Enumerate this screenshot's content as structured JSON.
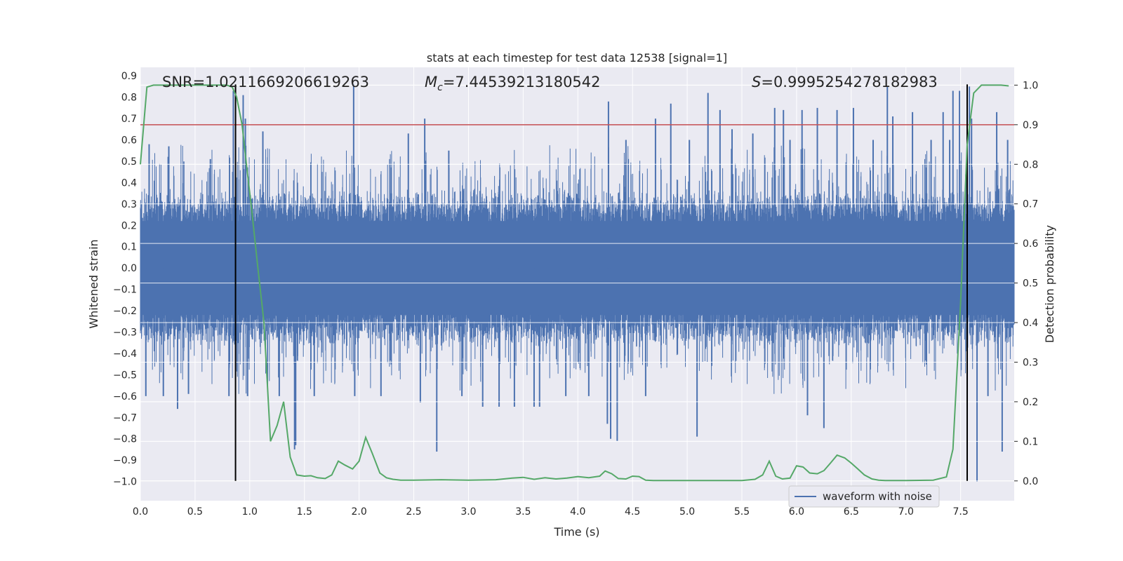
{
  "chart_data": {
    "type": "line",
    "title": "stats at each timestep for test data 12538 [signal=1]",
    "xlabel": "Time (s)",
    "ylabel": "Whitened strain",
    "ylabel_right": "Detection probability",
    "xlim": [
      0.0,
      7.99
    ],
    "ylim": [
      -1.09,
      0.94
    ],
    "ylim_right": [
      -0.05,
      1.045
    ],
    "x_ticks": [
      "0.0",
      "0.5",
      "1.0",
      "1.5",
      "2.0",
      "2.5",
      "3.0",
      "3.5",
      "4.0",
      "4.5",
      "5.0",
      "5.5",
      "6.0",
      "6.5",
      "7.0",
      "7.5"
    ],
    "y_ticks": [
      "0.9",
      "0.8",
      "0.7",
      "0.6",
      "0.5",
      "0.4",
      "0.3",
      "0.2",
      "0.1",
      "0.0",
      "−0.1",
      "−0.2",
      "−0.3",
      "−0.4",
      "−0.5",
      "−0.6",
      "−0.7",
      "−0.8",
      "−0.9",
      "−1.0"
    ],
    "y_ticks_right": [
      "0.0",
      "0.1",
      "0.2",
      "0.3",
      "0.4",
      "0.5",
      "0.6",
      "0.7",
      "0.8",
      "0.9",
      "1.0"
    ],
    "annotations": {
      "snr": "SNR=1.0211669206619263",
      "mc_symbol": "M",
      "mc_sub": "c",
      "mc_value": "=7.44539213180542",
      "s_symbol": "S",
      "s_value": "=0.9995254278182983"
    },
    "threshold": {
      "value": 0.9,
      "axis": "right",
      "color": "#c44e52"
    },
    "vlines": [
      0.87,
      7.56
    ],
    "legend": {
      "label": "waveform with noise",
      "placement": "lower-right"
    },
    "grid": true,
    "series": [
      {
        "name": "waveform with noise",
        "axis": "left",
        "color": "#4c72b0",
        "envelope_typical": 0.3,
        "x": [
          0.05,
          0.08,
          0.21,
          0.26,
          0.34,
          0.44,
          0.64,
          0.81,
          0.85,
          0.94,
          0.96,
          0.98,
          1.12,
          1.27,
          1.41,
          1.42,
          1.59,
          1.95,
          1.96,
          2.2,
          2.45,
          2.56,
          2.6,
          2.71,
          2.82,
          2.94,
          3.13,
          3.28,
          3.42,
          3.6,
          3.65,
          3.89,
          4.1,
          4.27,
          4.28,
          4.3,
          4.36,
          4.44,
          4.62,
          4.71,
          4.85,
          5.02,
          5.09,
          5.19,
          5.3,
          5.41,
          5.6,
          5.8,
          5.88,
          5.94,
          6.05,
          6.1,
          6.19,
          6.25,
          6.37,
          6.52,
          6.7,
          6.83,
          6.88,
          7.06,
          7.23,
          7.34,
          7.4,
          7.43,
          7.49,
          7.58,
          7.6,
          7.65,
          7.75,
          7.83,
          7.88,
          7.93
        ],
        "extremes": [
          -0.6,
          0.58,
          -0.6,
          0.57,
          -0.66,
          -0.59,
          0.51,
          -0.6,
          0.83,
          0.81,
          0.7,
          -0.6,
          0.64,
          -0.6,
          -0.85,
          -0.83,
          -0.6,
          0.86,
          -0.6,
          -0.6,
          0.63,
          -0.63,
          0.7,
          -0.86,
          0.55,
          -0.6,
          -0.65,
          -0.65,
          -0.65,
          -0.65,
          -0.65,
          -0.6,
          -0.6,
          -0.73,
          0.78,
          -0.8,
          -0.81,
          0.6,
          -0.6,
          0.7,
          0.77,
          0.6,
          -0.79,
          0.82,
          0.74,
          0.65,
          0.63,
          0.75,
          0.74,
          0.6,
          0.74,
          -0.69,
          0.75,
          -0.75,
          0.74,
          0.75,
          0.6,
          0.85,
          0.71,
          0.73,
          0.6,
          0.73,
          0.6,
          0.83,
          0.83,
          0.85,
          0.7,
          -1.0,
          -0.6,
          0.73,
          -0.86,
          0.6
        ]
      },
      {
        "name": "detection probability",
        "axis": "right",
        "color": "#55a868",
        "x": [
          0.0,
          0.06,
          0.12,
          0.25,
          0.5,
          0.6,
          0.7,
          0.79,
          0.84,
          0.88,
          0.93,
          0.97,
          1.02,
          1.07,
          1.13,
          1.19,
          1.25,
          1.31,
          1.37,
          1.43,
          1.5,
          1.56,
          1.62,
          1.69,
          1.75,
          1.81,
          1.87,
          1.94,
          2.0,
          2.06,
          2.12,
          2.19,
          2.25,
          2.31,
          2.38,
          2.5,
          2.75,
          3.0,
          3.25,
          3.4,
          3.5,
          3.6,
          3.7,
          3.8,
          3.9,
          4.0,
          4.1,
          4.2,
          4.25,
          4.31,
          4.37,
          4.44,
          4.5,
          4.56,
          4.62,
          4.69,
          4.75,
          4.87,
          5.0,
          5.25,
          5.5,
          5.62,
          5.69,
          5.75,
          5.81,
          5.87,
          5.94,
          6.0,
          6.06,
          6.12,
          6.19,
          6.25,
          6.31,
          6.37,
          6.44,
          6.5,
          6.56,
          6.62,
          6.69,
          6.75,
          6.81,
          6.87,
          7.0,
          7.25,
          7.37,
          7.43,
          7.5,
          7.56,
          7.62,
          7.69,
          7.75,
          7.81,
          7.87,
          7.94
        ],
        "y": [
          0.8,
          0.995,
          1.0,
          1.0,
          1.0,
          1.0,
          1.0,
          1.0,
          0.995,
          0.97,
          0.9,
          0.8,
          0.68,
          0.55,
          0.4,
          0.1,
          0.14,
          0.2,
          0.06,
          0.015,
          0.012,
          0.013,
          0.008,
          0.006,
          0.015,
          0.05,
          0.04,
          0.03,
          0.05,
          0.11,
          0.07,
          0.02,
          0.008,
          0.004,
          0.002,
          0.002,
          0.003,
          0.002,
          0.003,
          0.007,
          0.009,
          0.004,
          0.008,
          0.005,
          0.007,
          0.011,
          0.008,
          0.012,
          0.025,
          0.018,
          0.006,
          0.005,
          0.012,
          0.011,
          0.002,
          0.001,
          0.001,
          0.001,
          0.001,
          0.001,
          0.001,
          0.004,
          0.015,
          0.05,
          0.012,
          0.005,
          0.007,
          0.038,
          0.035,
          0.02,
          0.018,
          0.026,
          0.045,
          0.065,
          0.058,
          0.045,
          0.03,
          0.015,
          0.005,
          0.002,
          0.001,
          0.001,
          0.001,
          0.002,
          0.01,
          0.08,
          0.45,
          0.85,
          0.98,
          1.0,
          1.0,
          1.0,
          1.0,
          0.998
        ]
      }
    ]
  }
}
